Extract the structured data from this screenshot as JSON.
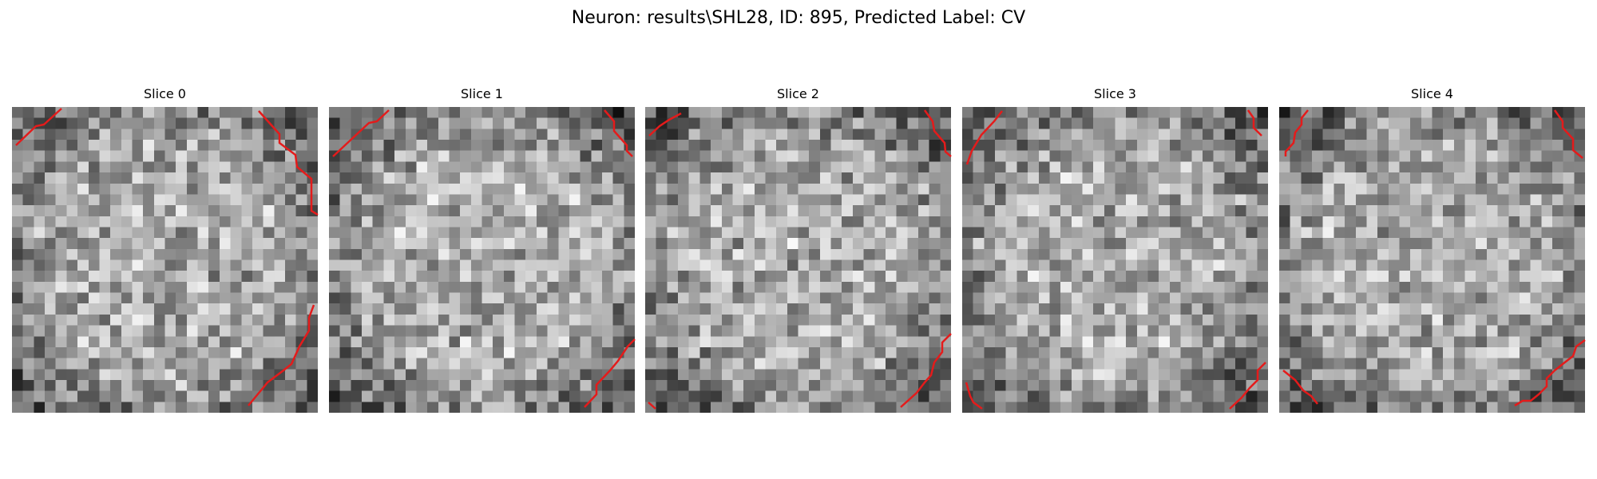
{
  "figure": {
    "title": "Neuron: results\\SHL28, ID: 895, Predicted Label: CV"
  },
  "slices": [
    {
      "label": "Slice 0"
    },
    {
      "label": "Slice 1"
    },
    {
      "label": "Slice 2"
    },
    {
      "label": "Slice 3"
    },
    {
      "label": "Slice 4"
    }
  ],
  "colors": {
    "contour": "#e41b1b",
    "background": "#ffffff"
  }
}
